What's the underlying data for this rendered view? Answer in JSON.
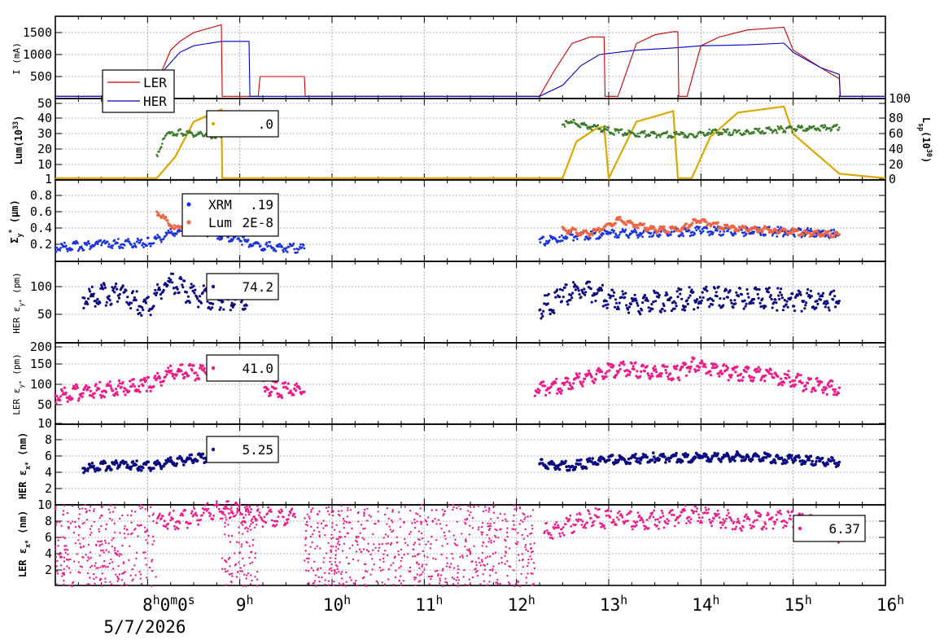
{
  "colors": {
    "ler_current": "#cc0000",
    "her_current": "#0000cc",
    "lum": "#dca800",
    "lsp": "#3d7a2a",
    "xrm": "#1a33dd",
    "lumsize": "#ee6644",
    "her_navy": "#0a0a80",
    "ler_pink": "#ee1a8a"
  },
  "x_axis": {
    "range_hours": [
      7.0,
      16.0
    ],
    "ticks": [
      {
        "hour": 8,
        "label": "8",
        "sup": "h",
        "extra": "0",
        "extra_sup": "m",
        "extra2": "0",
        "extra2_sup": "s"
      },
      {
        "hour": 9,
        "label": "9",
        "sup": "h"
      },
      {
        "hour": 10,
        "label": "10",
        "sup": "h"
      },
      {
        "hour": 11,
        "label": "11",
        "sup": "h"
      },
      {
        "hour": 12,
        "label": "12",
        "sup": "h"
      },
      {
        "hour": 13,
        "label": "13",
        "sup": "h"
      },
      {
        "hour": 14,
        "label": "14",
        "sup": "h"
      },
      {
        "hour": 15,
        "label": "15",
        "sup": "h"
      },
      {
        "hour": 16,
        "label": "16",
        "sup": "h"
      }
    ],
    "date": "5/7/2026"
  },
  "panels": {
    "current": {
      "ylabel": "I (mA)",
      "ticks": [
        "500",
        "1000",
        "1500"
      ],
      "legend": [
        "LER",
        "HER"
      ]
    },
    "lum": {
      "ylabel": "Lum(10",
      "ylabel_sup": "33",
      "ylabel_end": ")",
      "ticks": [
        "1",
        "10",
        "20",
        "30",
        "40",
        "50"
      ],
      "right_ticks": [
        "0",
        "20",
        "40",
        "60",
        "80",
        "100"
      ],
      "right_label": "L",
      "right_label_sub": "sp",
      "right_label_mid": "(10",
      "right_label_sup": "30",
      "right_label_end": ")",
      "legend_value": ".0"
    },
    "sigma": {
      "ylabel": "Σ",
      "ylabel_sub": "y",
      "ylabel_sup": "*",
      "ylabel_end": " (μm)",
      "ticks": [
        "0.2",
        "0.4",
        "0.6",
        "0.8"
      ],
      "legend": [
        {
          "name": "XRM",
          "value": ".19"
        },
        {
          "name": "Lum",
          "value": "2E-8"
        }
      ]
    },
    "her_ey": {
      "ylabel": "HER ε",
      "ylabel_sub": "y*",
      "ylabel_end": " (pm)",
      "ticks": [
        "50",
        "100"
      ],
      "legend_value": "74.2"
    },
    "ler_ey": {
      "ylabel": "LER ε",
      "ylabel_sub": "y*",
      "ylabel_end": " (pm)",
      "ticks": [
        "10",
        "50",
        "100",
        "150",
        "200"
      ],
      "legend_value": "41.0"
    },
    "her_ex": {
      "ylabel": "HER ε",
      "ylabel_sub": "x*",
      "ylabel_end": " (nm)",
      "ticks": [
        "2",
        "4",
        "6",
        "8"
      ],
      "legend_value": "5.25"
    },
    "ler_ex": {
      "ylabel": "LER ε",
      "ylabel_sub": "x*",
      "ylabel_end": " (nm)",
      "ticks": [
        "2",
        "4",
        "6",
        "8",
        "10"
      ],
      "legend_value": "6.37"
    }
  },
  "chart_data": [
    {
      "type": "line",
      "ylabel": "I (mA)",
      "ylim": [
        0,
        1800
      ],
      "x_units": "hour of day",
      "series": [
        {
          "name": "LER",
          "x": [
            7.0,
            8.1,
            8.15,
            8.25,
            8.35,
            8.5,
            8.8,
            8.81,
            9.2,
            9.22,
            9.7,
            9.71,
            12.25,
            12.4,
            12.6,
            12.8,
            12.95,
            12.96,
            13.1,
            13.3,
            13.5,
            13.7,
            13.75,
            13.76,
            13.85,
            14.0,
            14.2,
            14.5,
            14.9,
            15.0,
            15.3,
            15.5,
            15.51,
            16.0
          ],
          "y": [
            50,
            50,
            600,
            1100,
            1300,
            1500,
            1680,
            50,
            50,
            500,
            500,
            50,
            50,
            600,
            1250,
            1400,
            1400,
            50,
            50,
            1250,
            1450,
            1520,
            1520,
            50,
            50,
            1200,
            1400,
            1560,
            1620,
            1100,
            700,
            450,
            50,
            50
          ]
        },
        {
          "name": "HER",
          "x": [
            7.0,
            7.9,
            8.0,
            8.2,
            8.35,
            8.5,
            8.8,
            9.1,
            9.11,
            12.25,
            12.5,
            12.7,
            12.9,
            13.3,
            13.7,
            14.0,
            14.5,
            14.9,
            15.0,
            15.3,
            15.5,
            15.51,
            16.0
          ],
          "y": [
            50,
            50,
            200,
            700,
            1050,
            1200,
            1300,
            1300,
            50,
            50,
            300,
            750,
            1000,
            1100,
            1150,
            1200,
            1220,
            1260,
            1050,
            700,
            550,
            50,
            50
          ]
        }
      ]
    },
    {
      "type": "line",
      "ylabel": "Lum(10^33)",
      "ylim": [
        1,
        50
      ],
      "right_ylim": [
        0,
        100
      ],
      "series": [
        {
          "name": "Lum",
          "x": [
            7.0,
            8.1,
            8.3,
            8.5,
            8.8,
            8.81,
            12.5,
            12.65,
            12.85,
            12.95,
            13.0,
            13.3,
            13.7,
            13.75,
            13.9,
            14.1,
            14.4,
            14.9,
            15.0,
            15.5,
            16.0
          ],
          "y": [
            1,
            1,
            15,
            38,
            46,
            1,
            1,
            25,
            33,
            35,
            1,
            38,
            45,
            1,
            1,
            28,
            44,
            48,
            30,
            4,
            1
          ]
        },
        {
          "name": "Lsp",
          "axis": "right",
          "x": [
            8.1,
            8.2,
            8.35,
            8.6,
            8.8,
            12.5,
            12.6,
            12.9,
            13.1,
            13.4,
            13.75,
            13.9,
            14.1,
            14.5,
            14.9,
            15.5
          ],
          "y": [
            30,
            55,
            58,
            55,
            52,
            68,
            70,
            63,
            58,
            56,
            55,
            55,
            58,
            58,
            62,
            64
          ]
        }
      ]
    },
    {
      "type": "scatter",
      "ylabel": "Σy* (μm)",
      "ylim": [
        0.05,
        0.9
      ],
      "series": [
        {
          "name": "XRM",
          "x": [
            7.0,
            7.5,
            8.0,
            8.3,
            8.6,
            9.0,
            9.3,
            9.7,
            12.25,
            12.5,
            13.0,
            13.5,
            14.0,
            14.5,
            15.0,
            15.5
          ],
          "y": [
            0.16,
            0.2,
            0.22,
            0.35,
            0.37,
            0.25,
            0.17,
            0.15,
            0.22,
            0.3,
            0.33,
            0.35,
            0.36,
            0.36,
            0.35,
            0.32
          ]
        },
        {
          "name": "Lum",
          "x": [
            8.1,
            8.3,
            8.6,
            8.8,
            12.5,
            12.8,
            13.1,
            13.5,
            13.8,
            13.95,
            14.3,
            14.8,
            15.2,
            15.5
          ],
          "y": [
            0.6,
            0.4,
            0.38,
            0.55,
            0.38,
            0.33,
            0.5,
            0.38,
            0.38,
            0.5,
            0.4,
            0.38,
            0.33,
            0.32
          ]
        }
      ]
    },
    {
      "type": "scatter",
      "ylabel": "HER εy* (pm)",
      "ylim": [
        20,
        150
      ],
      "series": [
        {
          "name": "HER εy*",
          "x": [
            7.3,
            7.7,
            8.0,
            8.2,
            8.5,
            8.8,
            9.1,
            12.25,
            12.5,
            12.7,
            13.0,
            13.3,
            14.0,
            14.5,
            15.0,
            15.5
          ],
          "y": [
            80,
            90,
            60,
            110,
            85,
            75,
            80,
            60,
            80,
            100,
            80,
            70,
            80,
            80,
            75,
            74
          ]
        }
      ]
    },
    {
      "type": "scatter",
      "ylabel": "LER εy* (pm)",
      "ylim": [
        10,
        200
      ],
      "series": [
        {
          "name": "LER εy*",
          "x": [
            7.0,
            7.3,
            8.0,
            8.3,
            8.6,
            8.8,
            9.1,
            9.3,
            9.7,
            12.2,
            12.5,
            12.8,
            13.1,
            13.5,
            13.75,
            13.9,
            14.3,
            14.8,
            15.2,
            15.5
          ],
          "y": [
            30,
            35,
            45,
            75,
            75,
            75,
            100,
            40,
            35,
            40,
            45,
            65,
            85,
            75,
            70,
            100,
            75,
            65,
            45,
            41
          ]
        }
      ]
    },
    {
      "type": "scatter",
      "ylabel": "HER εx* (nm)",
      "ylim": [
        0.5,
        9.5
      ],
      "series": [
        {
          "name": "HER εx*",
          "x": [
            7.3,
            7.7,
            8.0,
            8.4,
            8.8,
            9.1,
            12.25,
            12.6,
            13.0,
            13.5,
            14.0,
            14.5,
            15.0,
            15.5
          ],
          "y": [
            4.5,
            5.0,
            4.7,
            5.5,
            6.0,
            5.8,
            5.0,
            4.8,
            5.5,
            5.8,
            5.8,
            6.0,
            5.5,
            5.25
          ]
        }
      ]
    },
    {
      "type": "scatter",
      "ylabel": "LER εx* (nm)",
      "ylim": [
        0,
        10
      ],
      "series": [
        {
          "name": "LER εx*",
          "x": [
            7.0,
            8.1,
            8.4,
            8.8,
            9.2,
            9.6,
            12.3,
            12.8,
            13.2,
            13.6,
            13.9,
            14.4,
            14.8,
            15.1,
            15.5
          ],
          "y": [
            9.5,
            8.0,
            8.2,
            9.5,
            8.5,
            8.5,
            6.5,
            8.5,
            8.0,
            8.3,
            9.0,
            8.0,
            8.2,
            8.0,
            6.4
          ]
        }
      ]
    }
  ]
}
